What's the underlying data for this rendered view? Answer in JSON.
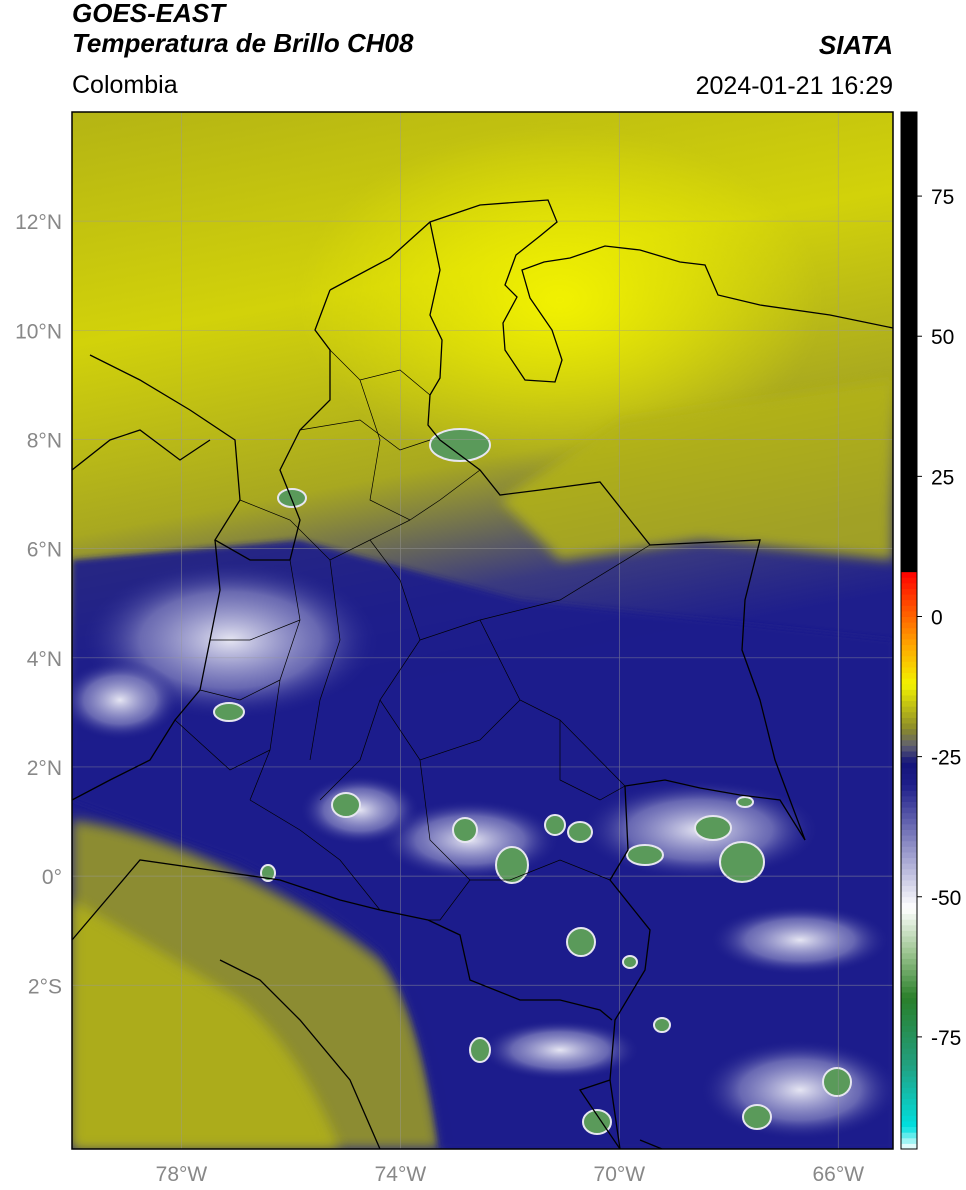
{
  "header": {
    "title_line1": "GOES-EAST",
    "title_line2": "Temperatura de Brillo CH08",
    "region": "Colombia",
    "agency": "SIATA",
    "datetime": "2024-01-21 16:29"
  },
  "map": {
    "lat_labels": [
      "12°N",
      "10°N",
      "8°N",
      "6°N",
      "4°N",
      "2°N",
      "0°",
      "2°S"
    ],
    "lat_values": [
      12,
      10,
      8,
      6,
      4,
      2,
      0,
      -2
    ],
    "lon_labels": [
      "78°W",
      "74°W",
      "70°W",
      "66°W"
    ],
    "lon_values": [
      -78,
      -74,
      -70,
      -66
    ],
    "extent": {
      "lon_min": -80,
      "lon_max": -65,
      "lat_min": -5,
      "lat_max": 14
    }
  },
  "colorbar": {
    "labels": [
      "75",
      "50",
      "25",
      "0",
      "-25",
      "-50",
      "-75"
    ],
    "values": [
      75,
      50,
      25,
      0,
      -25,
      -50,
      -75
    ],
    "range": [
      -95,
      90
    ],
    "stops": [
      {
        "v": -95,
        "c": "#ffffff"
      },
      {
        "v": -91,
        "c": "#00e0e0"
      },
      {
        "v": -80,
        "c": "#22a080"
      },
      {
        "v": -68,
        "c": "#2a7f2a"
      },
      {
        "v": -60,
        "c": "#9bc48f"
      },
      {
        "v": -52,
        "c": "#ffffff"
      },
      {
        "v": -42,
        "c": "#9a9acc"
      },
      {
        "v": -30,
        "c": "#1e1e8a"
      },
      {
        "v": -26,
        "c": "#14147a"
      },
      {
        "v": -23,
        "c": "#606070"
      },
      {
        "v": -20,
        "c": "#8a8a2a"
      },
      {
        "v": -12,
        "c": "#f2f200"
      },
      {
        "v": -5,
        "c": "#ffa500"
      },
      {
        "v": 8,
        "c": "#ff0000"
      },
      {
        "v": 8.5,
        "c": "#000000"
      },
      {
        "v": 90,
        "c": "#000000"
      }
    ]
  },
  "colors": {
    "clear_warm": "#e0e000",
    "clear_mid": "#b4b414",
    "clear_dim": "#8c8c32",
    "cloud_blue": "#1e1e8c",
    "cloud_white": "#e6e6f0",
    "deep_green": "#5a9a5a"
  }
}
